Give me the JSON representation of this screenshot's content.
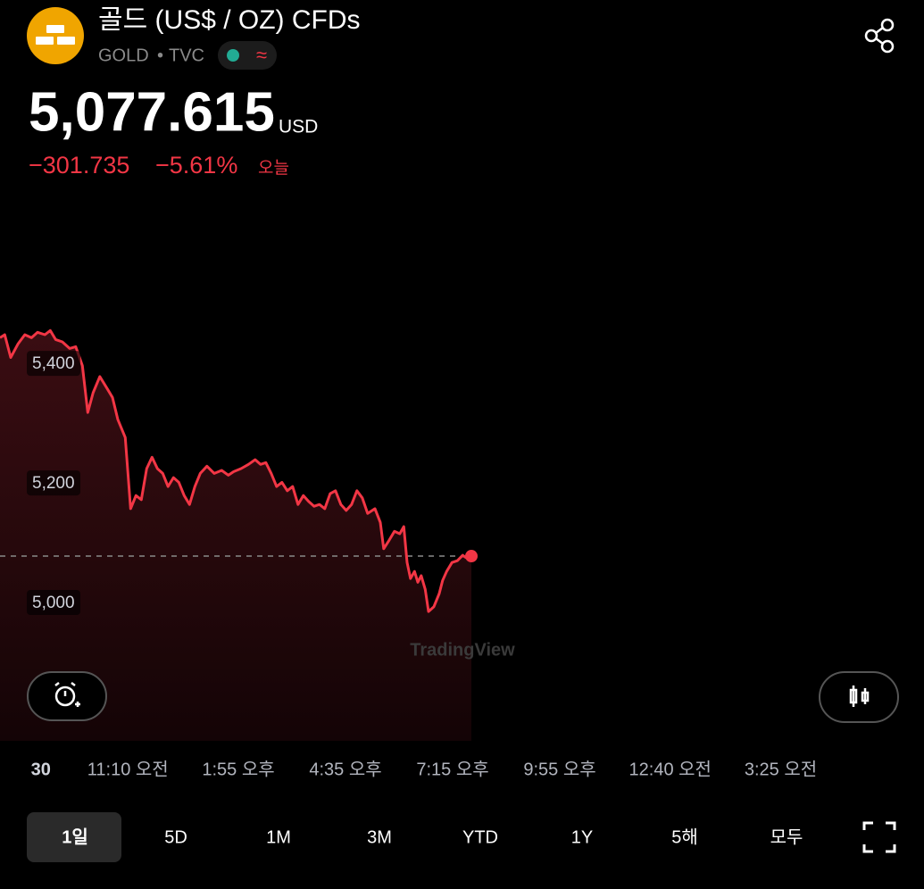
{
  "header": {
    "title": "골드 (US$ / OZ) CFDs",
    "symbol": "GOLD",
    "exchange": "TVC"
  },
  "quote": {
    "price": "5,077.615",
    "currency": "USD",
    "change": "−301.735",
    "change_percent": "−5.61%",
    "period": "오늘"
  },
  "chart_data": {
    "type": "line",
    "x": [
      479,
      486,
      495,
      506,
      516,
      526,
      535,
      546,
      554,
      562,
      572,
      583,
      592,
      602,
      610,
      618,
      628,
      639,
      647,
      655,
      666,
      674,
      682,
      690,
      698,
      706,
      714,
      722,
      730,
      738,
      746,
      754,
      762,
      770,
      778,
      788,
      799,
      810,
      820,
      828,
      839,
      850,
      860,
      868,
      876,
      884,
      892,
      900,
      908,
      916,
      924,
      932,
      940,
      948,
      956,
      964,
      972,
      980,
      988,
      996,
      1004,
      1012,
      1020,
      1028,
      1039,
      1047,
      1052,
      1060,
      1068,
      1076,
      1082,
      1087,
      1092,
      1098,
      1103,
      1108,
      1114,
      1119,
      1127,
      1135,
      1140,
      1146,
      1154,
      1162,
      1170,
      1175,
      1183
    ],
    "series": [
      {
        "color": "#f23645",
        "values": [
          5443,
          5448,
          5410,
          5433,
          5448,
          5443,
          5452,
          5448,
          5455,
          5440,
          5436,
          5425,
          5428,
          5396,
          5318,
          5351,
          5378,
          5358,
          5343,
          5306,
          5276,
          5157,
          5179,
          5172,
          5224,
          5243,
          5224,
          5216,
          5194,
          5209,
          5201,
          5179,
          5164,
          5194,
          5216,
          5228,
          5216,
          5221,
          5213,
          5219,
          5224,
          5231,
          5239,
          5231,
          5234,
          5216,
          5194,
          5201,
          5187,
          5194,
          5164,
          5179,
          5169,
          5161,
          5164,
          5157,
          5182,
          5187,
          5164,
          5154,
          5164,
          5187,
          5175,
          5149,
          5157,
          5134,
          5090,
          5104,
          5119,
          5115,
          5127,
          5067,
          5040,
          5052,
          5034,
          5045,
          5022,
          4985,
          4993,
          5015,
          5037,
          5052,
          5067,
          5070,
          5079,
          5075,
          5077.615
        ]
      }
    ],
    "xlim": [
      479,
      1859
    ],
    "xticks": [
      {
        "value": 540,
        "label": "30"
      },
      {
        "value": 670,
        "label": "11:10 오전"
      },
      {
        "value": 835,
        "label": "1:55 오후"
      },
      {
        "value": 995,
        "label": "4:35 오후"
      },
      {
        "value": 1155,
        "label": "7:15 오후"
      },
      {
        "value": 1315,
        "label": "9:55 오후"
      },
      {
        "value": 1480,
        "label": "12:40 오전"
      },
      {
        "value": 1645,
        "label": "3:25 오전"
      }
    ],
    "ylim": [
      4900,
      5560
    ],
    "yticks": [
      {
        "value": 5000,
        "label": "5,000"
      },
      {
        "value": 5200,
        "label": "5,200"
      },
      {
        "value": 5400,
        "label": "5,400"
      }
    ],
    "watermark": "TradingView"
  },
  "ranges": [
    "1일",
    "5D",
    "1M",
    "3M",
    "YTD",
    "1Y",
    "5해",
    "모두"
  ]
}
